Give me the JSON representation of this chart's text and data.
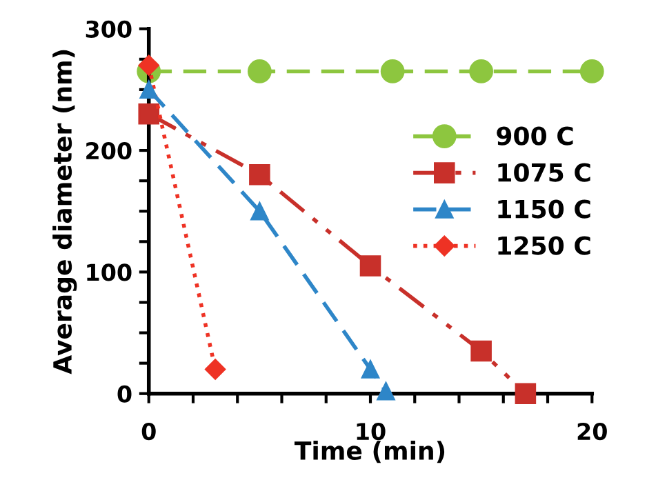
{
  "chart_data": {
    "type": "line",
    "xlabel": "Time (min)",
    "ylabel": "Average diameter (nm)",
    "xlim": [
      0,
      20
    ],
    "ylim": [
      0,
      300
    ],
    "xticks": [
      0,
      {
        "value": 2,
        "label": null
      },
      {
        "value": 4,
        "label": null
      },
      {
        "value": 6,
        "label": null
      },
      {
        "value": 8,
        "label": null
      },
      10,
      {
        "value": 12,
        "label": null
      },
      {
        "value": 14,
        "label": null
      },
      {
        "value": 16,
        "label": null
      },
      {
        "value": 18,
        "label": null
      },
      20
    ],
    "yticks": [
      0,
      {
        "value": 25,
        "label": null
      },
      {
        "value": 50,
        "label": null
      },
      {
        "value": 75,
        "label": null
      },
      100,
      {
        "value": 125,
        "label": null
      },
      {
        "value": 150,
        "label": null
      },
      {
        "value": 175,
        "label": null
      },
      200,
      {
        "value": 225,
        "label": null
      },
      {
        "value": 250,
        "label": null
      },
      {
        "value": 275,
        "label": null
      },
      300
    ],
    "grid": false,
    "legend": "right",
    "series": [
      {
        "name": "900 C",
        "color": "#8dc63f",
        "x": [
          0,
          5,
          11,
          15,
          20
        ],
        "values": [
          265,
          265,
          265,
          265,
          265
        ],
        "marker": "circle",
        "line_style": "dashed"
      },
      {
        "name": "1075 C",
        "color": "#c8302a",
        "x": [
          0,
          5,
          10,
          15,
          17
        ],
        "values": [
          230,
          180,
          105,
          35,
          0
        ],
        "marker": "square",
        "line_style": "dashdot"
      },
      {
        "name": "1150 C",
        "color": "#2e86c8",
        "x": [
          0,
          5,
          10,
          10.7
        ],
        "values": [
          250,
          150,
          20,
          2
        ],
        "marker": "triangle",
        "line_style": "dashed"
      },
      {
        "name": "1250 C",
        "color": "#ee3224",
        "x": [
          0,
          3
        ],
        "values": [
          270,
          20
        ],
        "marker": "diamond",
        "line_style": "dotted"
      }
    ]
  }
}
